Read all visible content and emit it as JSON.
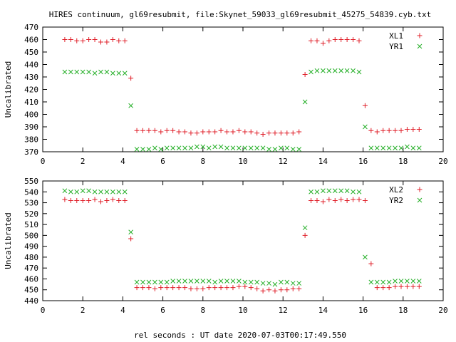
{
  "title": "HIRES continuum, gl69resubmit, file:Skynet_59033_gl69resubmit_45275_54839.cyb.txt",
  "xlabel": "rel seconds : UT date 2020-07-03T00:17:49.550",
  "colors": {
    "red": "#e0202a",
    "green": "#27b02a",
    "frame": "#000000"
  },
  "chart_data": [
    {
      "type": "scatter",
      "ylabel": "Uncalibrated",
      "xlim": [
        0,
        20
      ],
      "ylim": [
        370,
        470
      ],
      "xticks": [
        0,
        2,
        4,
        6,
        8,
        10,
        12,
        14,
        16,
        18,
        20
      ],
      "yticks": [
        370,
        380,
        390,
        400,
        410,
        420,
        430,
        440,
        450,
        460,
        470
      ],
      "grid": false,
      "legend": "top-right",
      "series": [
        {
          "name": "XL1",
          "marker": "plus",
          "color": "#e0202a",
          "x": [
            1.1,
            1.4,
            1.7,
            2.0,
            2.3,
            2.6,
            2.9,
            3.2,
            3.5,
            3.8,
            4.1,
            4.4,
            4.7,
            5.0,
            5.3,
            5.6,
            5.9,
            6.2,
            6.5,
            6.8,
            7.1,
            7.4,
            7.7,
            8.0,
            8.3,
            8.6,
            8.9,
            9.2,
            9.5,
            9.8,
            10.1,
            10.4,
            10.7,
            11.0,
            11.3,
            11.6,
            11.9,
            12.2,
            12.5,
            12.8,
            13.1,
            13.4,
            13.7,
            14.0,
            14.3,
            14.6,
            14.9,
            15.2,
            15.5,
            15.8,
            16.1,
            16.4,
            16.7,
            17.0,
            17.3,
            17.6,
            17.9,
            18.2,
            18.5,
            18.8
          ],
          "y": [
            460,
            460,
            459,
            459,
            460,
            460,
            458,
            458,
            460,
            459,
            459,
            429,
            387,
            387,
            387,
            387,
            386,
            387,
            387,
            386,
            386,
            385,
            385,
            386,
            386,
            386,
            387,
            386,
            386,
            387,
            386,
            386,
            385,
            384,
            385,
            385,
            385,
            385,
            385,
            386,
            432,
            459,
            459,
            457,
            459,
            460,
            460,
            460,
            460,
            459,
            407,
            387,
            386,
            387,
            387,
            387,
            387,
            388,
            388,
            388
          ]
        },
        {
          "name": "YR1",
          "marker": "cross",
          "color": "#27b02a",
          "x": [
            1.1,
            1.4,
            1.7,
            2.0,
            2.3,
            2.6,
            2.9,
            3.2,
            3.5,
            3.8,
            4.1,
            4.4,
            4.7,
            5.0,
            5.3,
            5.6,
            5.9,
            6.2,
            6.5,
            6.8,
            7.1,
            7.4,
            7.7,
            8.0,
            8.3,
            8.6,
            8.9,
            9.2,
            9.5,
            9.8,
            10.1,
            10.4,
            10.7,
            11.0,
            11.3,
            11.6,
            11.9,
            12.2,
            12.5,
            12.8,
            13.1,
            13.4,
            13.7,
            14.0,
            14.3,
            14.6,
            14.9,
            15.2,
            15.5,
            15.8,
            16.1,
            16.4,
            16.7,
            17.0,
            17.3,
            17.6,
            17.9,
            18.2,
            18.5,
            18.8
          ],
          "y": [
            434,
            434,
            434,
            434,
            434,
            433,
            434,
            434,
            433,
            433,
            433,
            407,
            372,
            372,
            372,
            373,
            372,
            373,
            373,
            373,
            373,
            373,
            374,
            374,
            373,
            374,
            374,
            373,
            373,
            373,
            373,
            373,
            373,
            373,
            372,
            372,
            373,
            373,
            372,
            372,
            410,
            434,
            435,
            435,
            435,
            435,
            435,
            435,
            435,
            434,
            390,
            373,
            373,
            373,
            373,
            373,
            373,
            374,
            373,
            373
          ]
        }
      ]
    },
    {
      "type": "scatter",
      "ylabel": "Uncalibrated",
      "xlim": [
        0,
        20
      ],
      "ylim": [
        440,
        550
      ],
      "xticks": [
        0,
        2,
        4,
        6,
        8,
        10,
        12,
        14,
        16,
        18,
        20
      ],
      "yticks": [
        440,
        450,
        460,
        470,
        480,
        490,
        500,
        510,
        520,
        530,
        540,
        550
      ],
      "grid": false,
      "legend": "top-right",
      "series": [
        {
          "name": "XL2",
          "marker": "plus",
          "color": "#e0202a",
          "x": [
            1.1,
            1.4,
            1.7,
            2.0,
            2.3,
            2.6,
            2.9,
            3.2,
            3.5,
            3.8,
            4.1,
            4.4,
            4.7,
            5.0,
            5.3,
            5.6,
            5.9,
            6.2,
            6.5,
            6.8,
            7.1,
            7.4,
            7.7,
            8.0,
            8.3,
            8.6,
            8.9,
            9.2,
            9.5,
            9.8,
            10.1,
            10.4,
            10.7,
            11.0,
            11.3,
            11.6,
            11.9,
            12.2,
            12.5,
            12.8,
            13.1,
            13.4,
            13.7,
            14.0,
            14.3,
            14.6,
            14.9,
            15.2,
            15.5,
            15.8,
            16.1,
            16.4,
            16.7,
            17.0,
            17.3,
            17.6,
            17.9,
            18.2,
            18.5,
            18.8
          ],
          "y": [
            533,
            532,
            532,
            532,
            532,
            533,
            531,
            532,
            533,
            532,
            532,
            497,
            452,
            452,
            452,
            451,
            452,
            452,
            452,
            452,
            452,
            451,
            451,
            451,
            452,
            452,
            452,
            452,
            452,
            453,
            453,
            452,
            451,
            449,
            450,
            449,
            450,
            450,
            451,
            451,
            500,
            532,
            532,
            531,
            533,
            532,
            533,
            532,
            533,
            533,
            532,
            474,
            452,
            452,
            452,
            453,
            453,
            453,
            453,
            453
          ]
        },
        {
          "name": "YR2",
          "marker": "cross",
          "color": "#27b02a",
          "x": [
            1.1,
            1.4,
            1.7,
            2.0,
            2.3,
            2.6,
            2.9,
            3.2,
            3.5,
            3.8,
            4.1,
            4.4,
            4.7,
            5.0,
            5.3,
            5.6,
            5.9,
            6.2,
            6.5,
            6.8,
            7.1,
            7.4,
            7.7,
            8.0,
            8.3,
            8.6,
            8.9,
            9.2,
            9.5,
            9.8,
            10.1,
            10.4,
            10.7,
            11.0,
            11.3,
            11.6,
            11.9,
            12.2,
            12.5,
            12.8,
            13.1,
            13.4,
            13.7,
            14.0,
            14.3,
            14.6,
            14.9,
            15.2,
            15.5,
            15.8,
            16.1,
            16.4,
            16.7,
            17.0,
            17.3,
            17.6,
            17.9,
            18.2,
            18.5,
            18.8
          ],
          "y": [
            541,
            540,
            540,
            541,
            541,
            540,
            540,
            540,
            540,
            540,
            540,
            503,
            457,
            457,
            457,
            457,
            457,
            457,
            458,
            458,
            458,
            458,
            458,
            458,
            458,
            457,
            458,
            458,
            458,
            458,
            457,
            457,
            457,
            456,
            456,
            455,
            457,
            457,
            456,
            456,
            507,
            540,
            540,
            541,
            541,
            541,
            541,
            541,
            540,
            540,
            480,
            457,
            457,
            457,
            457,
            458,
            458,
            458,
            458,
            458
          ]
        }
      ]
    }
  ]
}
